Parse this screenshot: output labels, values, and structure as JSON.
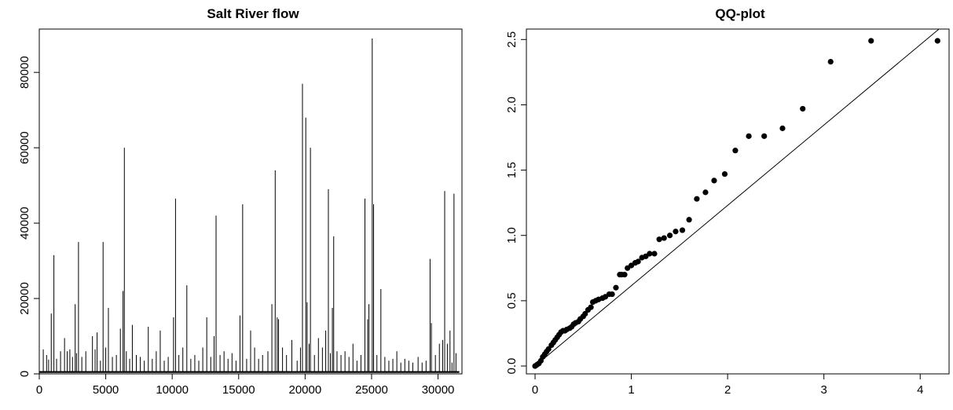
{
  "chart_data": [
    {
      "type": "line",
      "title": "Salt River flow",
      "xlabel": "",
      "ylabel": "",
      "xlim": [
        0,
        31800
      ],
      "ylim": [
        0,
        91500
      ],
      "x_ticks": [
        0,
        5000,
        10000,
        15000,
        20000,
        25000,
        30000
      ],
      "x_tick_labels": [
        "0",
        "5000",
        "10000",
        "15000",
        "20000",
        "25000",
        "30000"
      ],
      "y_ticks": [
        0,
        20000,
        40000,
        60000,
        80000
      ],
      "y_tick_labels": [
        "0",
        "20000",
        "40000",
        "60000",
        "80000"
      ],
      "baseline": 500,
      "peaks": [
        [
          300,
          6500
        ],
        [
          550,
          5000
        ],
        [
          700,
          3800
        ],
        [
          900,
          16000
        ],
        [
          1100,
          31500
        ],
        [
          1300,
          4000
        ],
        [
          1600,
          6000
        ],
        [
          1900,
          9500
        ],
        [
          2100,
          6000
        ],
        [
          2300,
          6500
        ],
        [
          2500,
          4500
        ],
        [
          2700,
          18500
        ],
        [
          2800,
          5500
        ],
        [
          2950,
          35000
        ],
        [
          3200,
          4500
        ],
        [
          3500,
          6000
        ],
        [
          4000,
          10000
        ],
        [
          4200,
          6500
        ],
        [
          4350,
          11000
        ],
        [
          4600,
          3500
        ],
        [
          4800,
          35000
        ],
        [
          5000,
          7000
        ],
        [
          5200,
          17500
        ],
        [
          5500,
          4500
        ],
        [
          5800,
          5000
        ],
        [
          6100,
          12000
        ],
        [
          6300,
          22000
        ],
        [
          6400,
          60000
        ],
        [
          6550,
          6000
        ],
        [
          6800,
          4000
        ],
        [
          7000,
          13000
        ],
        [
          7300,
          5000
        ],
        [
          7600,
          4500
        ],
        [
          7900,
          3500
        ],
        [
          8200,
          12500
        ],
        [
          8500,
          4000
        ],
        [
          8800,
          6000
        ],
        [
          9100,
          11500
        ],
        [
          9400,
          3500
        ],
        [
          9700,
          4500
        ],
        [
          10100,
          15000
        ],
        [
          10250,
          46500
        ],
        [
          10500,
          5000
        ],
        [
          10800,
          7000
        ],
        [
          11100,
          23500
        ],
        [
          11400,
          4000
        ],
        [
          11700,
          5000
        ],
        [
          12000,
          3500
        ],
        [
          12300,
          7000
        ],
        [
          12600,
          15000
        ],
        [
          12900,
          4500
        ],
        [
          13150,
          10000
        ],
        [
          13300,
          42000
        ],
        [
          13600,
          5000
        ],
        [
          13900,
          6000
        ],
        [
          14200,
          4000
        ],
        [
          14500,
          5500
        ],
        [
          14800,
          3500
        ],
        [
          15100,
          15500
        ],
        [
          15300,
          45000
        ],
        [
          15600,
          4000
        ],
        [
          15900,
          11500
        ],
        [
          16200,
          7000
        ],
        [
          16500,
          4000
        ],
        [
          16800,
          5000
        ],
        [
          17200,
          6000
        ],
        [
          17500,
          18500
        ],
        [
          17750,
          54000
        ],
        [
          17900,
          15000
        ],
        [
          18000,
          14500
        ],
        [
          18300,
          7000
        ],
        [
          18600,
          5000
        ],
        [
          19000,
          9000
        ],
        [
          19400,
          3500
        ],
        [
          19650,
          7000
        ],
        [
          19800,
          77000
        ],
        [
          20050,
          68000
        ],
        [
          20150,
          19000
        ],
        [
          20300,
          8000
        ],
        [
          20400,
          60000
        ],
        [
          20700,
          5000
        ],
        [
          21000,
          9500
        ],
        [
          21300,
          7000
        ],
        [
          21550,
          11500
        ],
        [
          21750,
          49000
        ],
        [
          21900,
          5500
        ],
        [
          22050,
          17500
        ],
        [
          22150,
          36500
        ],
        [
          22400,
          6000
        ],
        [
          22700,
          5000
        ],
        [
          23000,
          6000
        ],
        [
          23300,
          4500
        ],
        [
          23600,
          8000
        ],
        [
          23900,
          3500
        ],
        [
          24200,
          5000
        ],
        [
          24500,
          46500
        ],
        [
          24700,
          14500
        ],
        [
          24800,
          18500
        ],
        [
          25050,
          89000
        ],
        [
          25150,
          45000
        ],
        [
          25400,
          5000
        ],
        [
          25700,
          22500
        ],
        [
          26000,
          4500
        ],
        [
          26300,
          3500
        ],
        [
          26600,
          4000
        ],
        [
          26900,
          6000
        ],
        [
          27200,
          3000
        ],
        [
          27500,
          4000
        ],
        [
          27800,
          3500
        ],
        [
          28100,
          3000
        ],
        [
          28500,
          4500
        ],
        [
          28800,
          3000
        ],
        [
          29100,
          3500
        ],
        [
          29400,
          30500
        ],
        [
          29500,
          13500
        ],
        [
          29800,
          5000
        ],
        [
          30100,
          8000
        ],
        [
          30350,
          9000
        ],
        [
          30500,
          48500
        ],
        [
          30700,
          8000
        ],
        [
          30900,
          11500
        ],
        [
          31050,
          3000
        ],
        [
          31200,
          47800
        ],
        [
          31350,
          5500
        ]
      ]
    },
    {
      "type": "scatter",
      "title": "QQ-plot",
      "xlabel": "",
      "ylabel": "",
      "xlim": [
        -0.09,
        4.3
      ],
      "ylim": [
        -0.06,
        2.58
      ],
      "x_ticks": [
        0,
        1,
        2,
        3,
        4
      ],
      "x_tick_labels": [
        "0",
        "1",
        "2",
        "3",
        "4"
      ],
      "y_ticks": [
        0,
        0.5,
        1,
        1.5,
        2,
        2.5
      ],
      "y_tick_labels": [
        "0.0",
        "0.5",
        "1.0",
        "1.5",
        "2.0",
        "2.5"
      ],
      "reference_line": {
        "slope": 0.615,
        "intercept": 0
      },
      "x": [
        0.0,
        0.02,
        0.04,
        0.06,
        0.08,
        0.1,
        0.12,
        0.14,
        0.17,
        0.19,
        0.21,
        0.23,
        0.25,
        0.27,
        0.29,
        0.31,
        0.33,
        0.36,
        0.38,
        0.4,
        0.42,
        0.45,
        0.47,
        0.5,
        0.52,
        0.55,
        0.58,
        0.6,
        0.63,
        0.66,
        0.7,
        0.73,
        0.77,
        0.8,
        0.84,
        0.88,
        0.9,
        0.93,
        0.96,
        1.0,
        1.04,
        1.07,
        1.11,
        1.15,
        1.19,
        1.24,
        1.29,
        1.34,
        1.4,
        1.46,
        1.53,
        1.6,
        1.68,
        1.77,
        1.86,
        1.97,
        2.08,
        2.22,
        2.38,
        2.57,
        2.78,
        3.07,
        3.49,
        4.18
      ],
      "y": [
        0.0,
        0.01,
        0.02,
        0.04,
        0.07,
        0.09,
        0.11,
        0.13,
        0.16,
        0.18,
        0.2,
        0.22,
        0.24,
        0.26,
        0.27,
        0.27,
        0.28,
        0.29,
        0.3,
        0.32,
        0.33,
        0.34,
        0.36,
        0.38,
        0.4,
        0.43,
        0.45,
        0.49,
        0.5,
        0.51,
        0.52,
        0.53,
        0.55,
        0.55,
        0.6,
        0.7,
        0.7,
        0.7,
        0.75,
        0.77,
        0.79,
        0.8,
        0.83,
        0.84,
        0.86,
        0.86,
        0.97,
        0.98,
        1.0,
        1.03,
        1.04,
        1.12,
        1.28,
        1.33,
        1.42,
        1.47,
        1.65,
        1.76,
        1.76,
        1.82,
        1.97,
        2.33,
        2.49,
        2.49
      ]
    }
  ]
}
